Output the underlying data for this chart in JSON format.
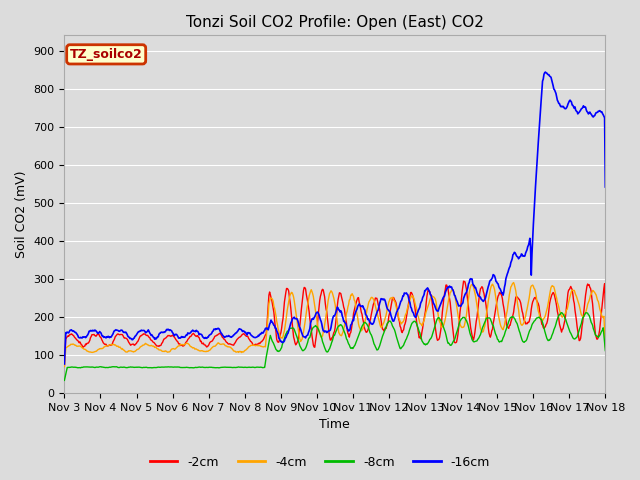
{
  "title": "Tonzi Soil CO2 Profile: Open (East) CO2",
  "ylabel": "Soil CO2 (mV)",
  "xlabel": "Time",
  "ylim": [
    0,
    940
  ],
  "yticks": [
    0,
    100,
    200,
    300,
    400,
    500,
    600,
    700,
    800,
    900
  ],
  "bg_color": "#dcdcdc",
  "series_colors": {
    "-2cm": "#ff0000",
    "-4cm": "#ffa500",
    "-8cm": "#00bb00",
    "-16cm": "#0000ff"
  },
  "legend_label": "TZ_soilco2",
  "legend_box_facecolor": "#ffffcc",
  "legend_box_edgecolor": "#cc3300",
  "xtick_labels": [
    "Nov 3",
    "Nov 4",
    "Nov 5",
    "Nov 6",
    "Nov 7",
    "Nov 8",
    "Nov 9",
    "Nov 10",
    "Nov 11",
    "Nov 12",
    "Nov 13",
    "Nov 14",
    "Nov 15",
    "Nov 16",
    "Nov 17",
    "Nov 18"
  ],
  "grid_color": "#ffffff",
  "title_fontsize": 11,
  "tick_fontsize": 8,
  "ylabel_fontsize": 9
}
